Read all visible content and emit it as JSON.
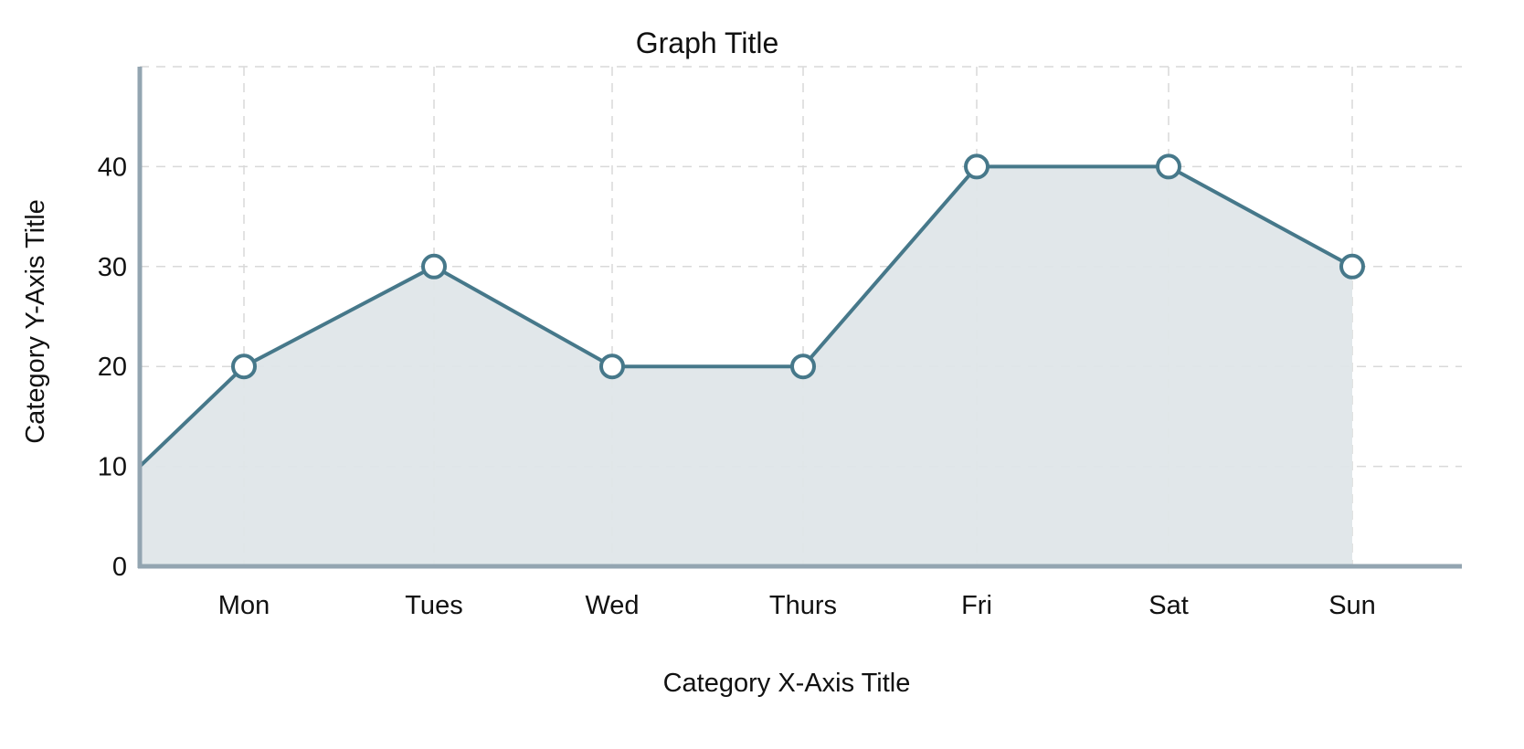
{
  "chart_data": {
    "type": "area",
    "title": "Graph Title",
    "xlabel": "Category X-Axis Title",
    "ylabel": "Category Y-Axis Title",
    "categories": [
      "Mon",
      "Tues",
      "Wed",
      "Thurs",
      "Fri",
      "Sat",
      "Sun"
    ],
    "series": [
      {
        "start_value": 10,
        "values": [
          20,
          30,
          20,
          20,
          40,
          40,
          30
        ]
      }
    ],
    "ylim": [
      0,
      50
    ],
    "yticks": [
      0,
      10,
      20,
      30,
      40
    ],
    "grid": true,
    "markers": "open-circle",
    "colors": {
      "line": "#46788a",
      "fill": "#dfe6e9",
      "axis": "#93a5b1",
      "grid": "#d9d9d9"
    }
  }
}
